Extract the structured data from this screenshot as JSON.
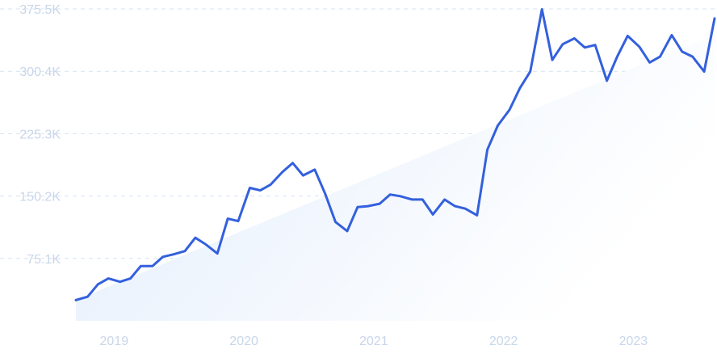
{
  "chart_data": {
    "type": "line",
    "title": "",
    "xlabel": "",
    "ylabel": "",
    "ylim": [
      0,
      375.5
    ],
    "x_range": [
      2018.83,
      2023.75
    ],
    "grid": "horizontal-dashed",
    "legend": "none",
    "y_ticks": [
      {
        "value": 75.1,
        "label": "75.1K"
      },
      {
        "value": 150.2,
        "label": "150.2K"
      },
      {
        "value": 225.3,
        "label": "225.3K"
      },
      {
        "value": 300.4,
        "label": "300.4K"
      },
      {
        "value": 375.5,
        "label": "375.5K"
      }
    ],
    "x_ticks": [
      {
        "value": 2019,
        "label": "2019"
      },
      {
        "value": 2020,
        "label": "2020"
      },
      {
        "value": 2021,
        "label": "2021"
      },
      {
        "value": 2022,
        "label": "2022"
      },
      {
        "value": 2023,
        "label": "2023"
      }
    ],
    "series": [
      {
        "type": "line",
        "points": [
          [
            2018.83,
            25
          ],
          [
            2018.92,
            29
          ],
          [
            2019.0,
            44
          ],
          [
            2019.08,
            51
          ],
          [
            2019.17,
            47
          ],
          [
            2019.25,
            51
          ],
          [
            2019.33,
            66
          ],
          [
            2019.42,
            66
          ],
          [
            2019.5,
            77
          ],
          [
            2019.58,
            80
          ],
          [
            2019.67,
            84
          ],
          [
            2019.75,
            100
          ],
          [
            2019.83,
            92
          ],
          [
            2019.92,
            81
          ],
          [
            2020.0,
            123
          ],
          [
            2020.08,
            120
          ],
          [
            2020.17,
            160
          ],
          [
            2020.25,
            157
          ],
          [
            2020.33,
            164
          ],
          [
            2020.42,
            179
          ],
          [
            2020.5,
            190
          ],
          [
            2020.58,
            175
          ],
          [
            2020.67,
            182
          ],
          [
            2020.75,
            153
          ],
          [
            2020.83,
            119
          ],
          [
            2020.92,
            108
          ],
          [
            2021.0,
            137
          ],
          [
            2021.08,
            138
          ],
          [
            2021.17,
            141
          ],
          [
            2021.25,
            152
          ],
          [
            2021.33,
            150
          ],
          [
            2021.42,
            146
          ],
          [
            2021.5,
            146
          ],
          [
            2021.58,
            128
          ],
          [
            2021.67,
            146
          ],
          [
            2021.75,
            138
          ],
          [
            2021.83,
            135
          ],
          [
            2021.92,
            127
          ],
          [
            2022.0,
            206
          ],
          [
            2022.08,
            235
          ],
          [
            2022.17,
            254
          ],
          [
            2022.25,
            280
          ],
          [
            2022.33,
            300
          ],
          [
            2022.42,
            375
          ],
          [
            2022.5,
            314
          ],
          [
            2022.58,
            333
          ],
          [
            2022.67,
            340
          ],
          [
            2022.75,
            329
          ],
          [
            2022.83,
            332
          ],
          [
            2022.92,
            289
          ],
          [
            2023.0,
            318
          ],
          [
            2023.08,
            343
          ],
          [
            2023.17,
            330
          ],
          [
            2023.25,
            311
          ],
          [
            2023.33,
            318
          ],
          [
            2023.42,
            344
          ],
          [
            2023.5,
            324
          ],
          [
            2023.58,
            318
          ],
          [
            2023.67,
            300
          ],
          [
            2023.75,
            364
          ]
        ]
      },
      {
        "type": "area",
        "points": [
          [
            2018.83,
            25
          ],
          [
            2023.75,
            345
          ]
        ]
      }
    ]
  },
  "style": {
    "line_color": "#3360dd",
    "area_color_light": "#e2edfc",
    "area_color_fade": "#ffffff",
    "grid_color": "#d6e3f3",
    "tick_label_color": "#c8d6ea"
  }
}
